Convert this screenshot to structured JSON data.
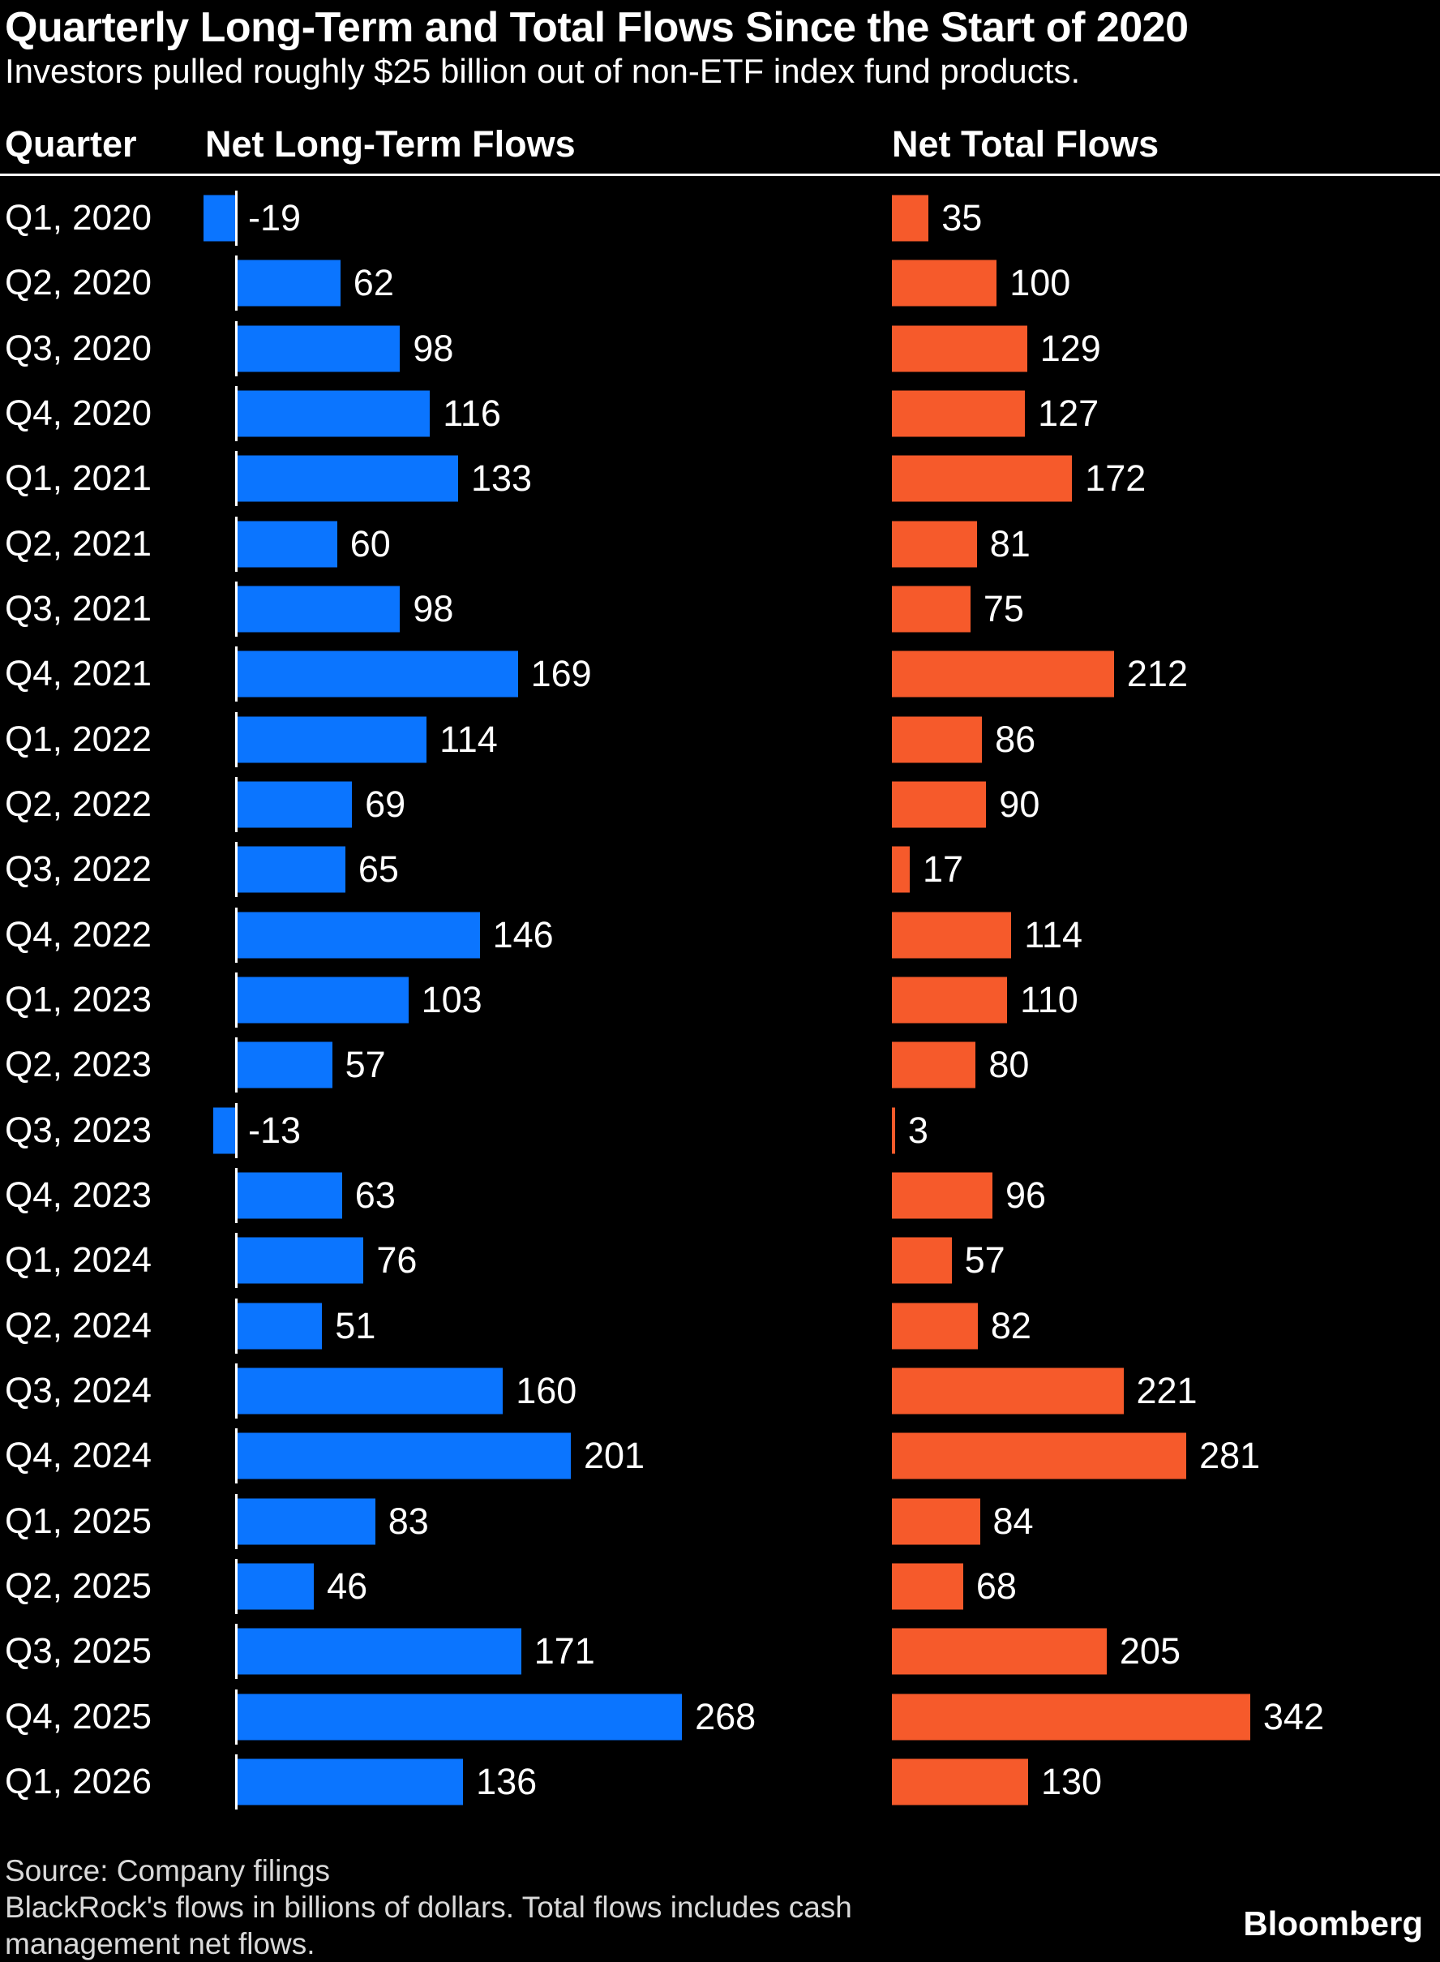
{
  "title": "Quarterly Long-Term and Total Flows Since the Start of 2020",
  "subtitle": "Investors pulled roughly $25 billion out of non-ETF index fund products.",
  "columns": {
    "quarter": "Quarter",
    "long_term": "Net Long-Term Flows",
    "total": "Net Total Flows"
  },
  "colors": {
    "background": "#000000",
    "long_term_bar": "#0b75ff",
    "total_bar": "#f65a2b",
    "text": "#ffffff",
    "footer_text": "#d9d9d9"
  },
  "chart_data": {
    "type": "bar",
    "orientation": "horizontal",
    "title": "Quarterly Long-Term and Total Flows Since the Start of 2020",
    "subtitle": "Investors pulled roughly $25 billion out of non-ETF index fund products.",
    "categories": [
      "Q1, 2020",
      "Q2, 2020",
      "Q3, 2020",
      "Q4, 2020",
      "Q1, 2021",
      "Q2, 2021",
      "Q3, 2021",
      "Q4, 2021",
      "Q1, 2022",
      "Q2, 2022",
      "Q3, 2022",
      "Q4, 2022",
      "Q1, 2023",
      "Q2, 2023",
      "Q3, 2023",
      "Q4, 2023",
      "Q1, 2024",
      "Q2, 2024",
      "Q3, 2024",
      "Q4, 2024",
      "Q1, 2025",
      "Q2, 2025",
      "Q3, 2025",
      "Q4, 2025",
      "Q1, 2026"
    ],
    "series": [
      {
        "name": "Net Long-Term Flows",
        "color": "#0b75ff",
        "values": [
          -19,
          62,
          98,
          116,
          133,
          60,
          98,
          169,
          114,
          69,
          65,
          146,
          103,
          57,
          -13,
          63,
          76,
          51,
          160,
          201,
          83,
          46,
          171,
          268,
          136
        ]
      },
      {
        "name": "Net Total Flows",
        "color": "#f65a2b",
        "values": [
          35,
          100,
          129,
          127,
          172,
          81,
          75,
          212,
          86,
          90,
          17,
          114,
          110,
          80,
          3,
          96,
          57,
          82,
          221,
          281,
          84,
          68,
          205,
          342,
          130
        ]
      }
    ],
    "units": "billions of dollars",
    "grid": false,
    "legend_position": "column-headers",
    "value_labels": true
  },
  "footer": {
    "source": "Source: Company filings",
    "note_line1": "BlackRock's flows in billions of dollars. Total flows includes cash",
    "note_line2": "management net flows.",
    "logo": "Bloomberg"
  }
}
